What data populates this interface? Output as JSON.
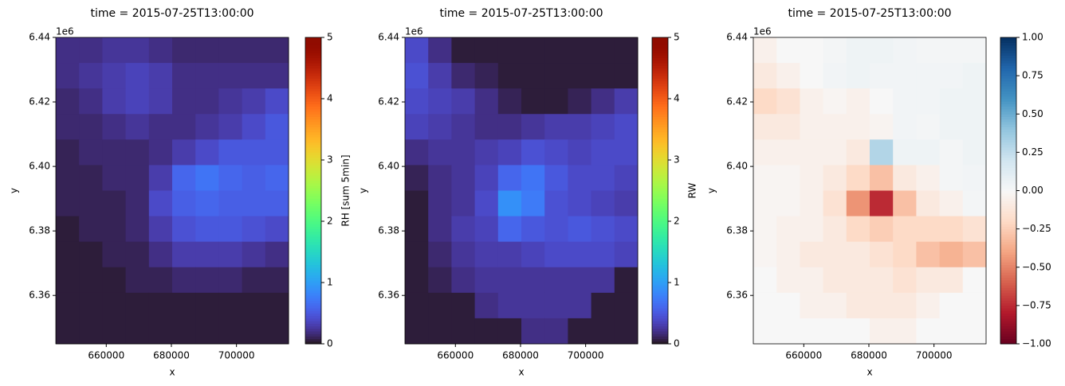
{
  "chart_data": [
    {
      "type": "heatmap",
      "title": "time = 2015-07-25T13:00:00",
      "xlabel": "x",
      "ylabel": "y",
      "y_offset_label": "1e6",
      "xlim": [
        644500,
        716000
      ],
      "ylim": [
        6345000,
        6440000
      ],
      "xticks": [
        660000,
        680000,
        700000
      ],
      "yticks": [
        {
          "value": 6360000,
          "label": "6.36"
        },
        {
          "value": 6380000,
          "label": "6.38"
        },
        {
          "value": 6400000,
          "label": "6.40"
        },
        {
          "value": 6420000,
          "label": "6.42"
        },
        {
          "value": 6440000,
          "label": "6.44"
        }
      ],
      "z": [
        [
          0.2,
          0.2,
          0.25,
          0.25,
          0.2,
          0.15,
          0.15,
          0.15,
          0.15,
          0.15
        ],
        [
          0.2,
          0.25,
          0.3,
          0.35,
          0.3,
          0.2,
          0.2,
          0.2,
          0.2,
          0.2
        ],
        [
          0.15,
          0.2,
          0.3,
          0.35,
          0.3,
          0.2,
          0.2,
          0.25,
          0.3,
          0.4
        ],
        [
          0.15,
          0.15,
          0.2,
          0.25,
          0.2,
          0.2,
          0.25,
          0.3,
          0.4,
          0.5
        ],
        [
          0.1,
          0.15,
          0.15,
          0.15,
          0.2,
          0.3,
          0.4,
          0.5,
          0.5,
          0.5
        ],
        [
          0.1,
          0.1,
          0.15,
          0.15,
          0.3,
          0.6,
          0.7,
          0.6,
          0.55,
          0.6
        ],
        [
          0.1,
          0.1,
          0.1,
          0.15,
          0.4,
          0.55,
          0.6,
          0.55,
          0.55,
          0.55
        ],
        [
          0.05,
          0.1,
          0.1,
          0.15,
          0.3,
          0.45,
          0.5,
          0.5,
          0.45,
          0.4
        ],
        [
          0.05,
          0.05,
          0.1,
          0.1,
          0.2,
          0.3,
          0.3,
          0.3,
          0.25,
          0.2
        ],
        [
          0.05,
          0.05,
          0.05,
          0.1,
          0.1,
          0.15,
          0.15,
          0.15,
          0.1,
          0.1
        ],
        [
          0.05,
          0.05,
          0.05,
          0.05,
          0.05,
          0.05,
          0.05,
          0.05,
          0.05,
          0.05
        ],
        [
          0.05,
          0.05,
          0.05,
          0.05,
          0.05,
          0.05,
          0.05,
          0.05,
          0.05,
          0.05
        ]
      ],
      "colorbar": {
        "label": "RH [sum 5min]",
        "colormap": "turbo",
        "lim": [
          0,
          5
        ],
        "ticks": [
          0,
          1,
          2,
          3,
          4,
          5
        ]
      }
    },
    {
      "type": "heatmap",
      "title": "time = 2015-07-25T13:00:00",
      "xlabel": "x",
      "ylabel": "y",
      "y_offset_label": "1e6",
      "xlim": [
        644500,
        716000
      ],
      "ylim": [
        6345000,
        6440000
      ],
      "xticks": [
        660000,
        680000,
        700000
      ],
      "yticks": [
        {
          "value": 6360000,
          "label": "6.36"
        },
        {
          "value": 6380000,
          "label": "6.38"
        },
        {
          "value": 6400000,
          "label": "6.40"
        },
        {
          "value": 6420000,
          "label": "6.42"
        },
        {
          "value": 6440000,
          "label": "6.44"
        }
      ],
      "z": [
        [
          0.4,
          0.2,
          0.05,
          0.05,
          0.05,
          0.05,
          0.05,
          0.05,
          0.05,
          0.05
        ],
        [
          0.45,
          0.3,
          0.15,
          0.1,
          0.05,
          0.05,
          0.05,
          0.05,
          0.05,
          0.05
        ],
        [
          0.4,
          0.35,
          0.3,
          0.2,
          0.1,
          0.05,
          0.05,
          0.1,
          0.2,
          0.3
        ],
        [
          0.35,
          0.3,
          0.25,
          0.2,
          0.2,
          0.25,
          0.3,
          0.3,
          0.35,
          0.4
        ],
        [
          0.2,
          0.25,
          0.25,
          0.3,
          0.35,
          0.45,
          0.4,
          0.35,
          0.4,
          0.4
        ],
        [
          0.1,
          0.2,
          0.25,
          0.35,
          0.6,
          0.7,
          0.5,
          0.4,
          0.4,
          0.35
        ],
        [
          0.05,
          0.2,
          0.25,
          0.4,
          0.9,
          0.75,
          0.45,
          0.4,
          0.35,
          0.3
        ],
        [
          0.05,
          0.2,
          0.3,
          0.35,
          0.6,
          0.5,
          0.45,
          0.5,
          0.45,
          0.4
        ],
        [
          0.05,
          0.15,
          0.25,
          0.3,
          0.3,
          0.35,
          0.4,
          0.4,
          0.4,
          0.35
        ],
        [
          0.05,
          0.1,
          0.2,
          0.25,
          0.25,
          0.25,
          0.25,
          0.25,
          0.25,
          0.05
        ],
        [
          0.05,
          0.05,
          0.05,
          0.2,
          0.25,
          0.25,
          0.25,
          0.25,
          0.05,
          0.05
        ],
        [
          0.05,
          0.05,
          0.05,
          0.05,
          0.05,
          0.2,
          0.2,
          0.05,
          0.05,
          0.05
        ]
      ],
      "colorbar": {
        "label": "RW",
        "colormap": "turbo",
        "lim": [
          0,
          5
        ],
        "ticks": [
          0,
          1,
          2,
          3,
          4,
          5
        ]
      }
    },
    {
      "type": "heatmap",
      "title": "time = 2015-07-25T13:00:00",
      "xlabel": "x",
      "ylabel": "y",
      "y_offset_label": "1e6",
      "xlim": [
        644500,
        716000
      ],
      "ylim": [
        6345000,
        6440000
      ],
      "xticks": [
        660000,
        680000,
        700000
      ],
      "yticks": [
        {
          "value": 6360000,
          "label": "6.36"
        },
        {
          "value": 6380000,
          "label": "6.38"
        },
        {
          "value": 6400000,
          "label": "6.40"
        },
        {
          "value": 6420000,
          "label": "6.42"
        },
        {
          "value": 6440000,
          "label": "6.44"
        }
      ],
      "z": [
        [
          -0.05,
          0,
          0,
          0.02,
          0.05,
          0.05,
          0.03,
          0.02,
          0.02,
          0.02
        ],
        [
          -0.1,
          -0.05,
          0,
          0.03,
          0.05,
          0.03,
          0.03,
          0.03,
          0.03,
          0.05
        ],
        [
          -0.2,
          -0.15,
          -0.05,
          -0.02,
          -0.05,
          0,
          0.03,
          0.03,
          0.05,
          0.05
        ],
        [
          -0.1,
          -0.1,
          -0.05,
          -0.05,
          -0.05,
          -0.03,
          0.03,
          0.02,
          0.05,
          0.05
        ],
        [
          -0.05,
          -0.05,
          -0.05,
          -0.05,
          -0.1,
          0.3,
          0.05,
          0.05,
          0.02,
          0.05
        ],
        [
          -0.02,
          -0.02,
          -0.05,
          -0.1,
          -0.2,
          -0.3,
          -0.1,
          -0.05,
          0.02,
          0.03
        ],
        [
          -0.02,
          -0.02,
          -0.05,
          -0.15,
          -0.45,
          -0.75,
          -0.3,
          -0.1,
          -0.05,
          0.02
        ],
        [
          -0.02,
          -0.05,
          -0.05,
          -0.1,
          -0.2,
          -0.25,
          -0.2,
          -0.2,
          -0.2,
          -0.15
        ],
        [
          -0.02,
          -0.05,
          -0.1,
          -0.1,
          -0.1,
          -0.15,
          -0.2,
          -0.3,
          -0.35,
          -0.3
        ],
        [
          0,
          -0.05,
          -0.05,
          -0.1,
          -0.1,
          -0.1,
          -0.15,
          -0.1,
          -0.1,
          0
        ],
        [
          0,
          0,
          -0.05,
          -0.05,
          -0.1,
          -0.1,
          -0.1,
          -0.05,
          0,
          0
        ],
        [
          0,
          0,
          0,
          0,
          0,
          -0.05,
          -0.05,
          0,
          0,
          0
        ]
      ],
      "colorbar": {
        "colormap": "RdBu",
        "lim": [
          -1,
          1
        ],
        "ticks": [
          {
            "value": -1,
            "label": "−1.00"
          },
          {
            "value": -0.75,
            "label": "−0.75"
          },
          {
            "value": -0.5,
            "label": "−0.50"
          },
          {
            "value": -0.25,
            "label": "−0.25"
          },
          {
            "value": 0,
            "label": "0.00"
          },
          {
            "value": 0.25,
            "label": "0.25"
          },
          {
            "value": 0.5,
            "label": "0.50"
          },
          {
            "value": 0.75,
            "label": "0.75"
          },
          {
            "value": 1,
            "label": "1.00"
          }
        ]
      }
    }
  ]
}
